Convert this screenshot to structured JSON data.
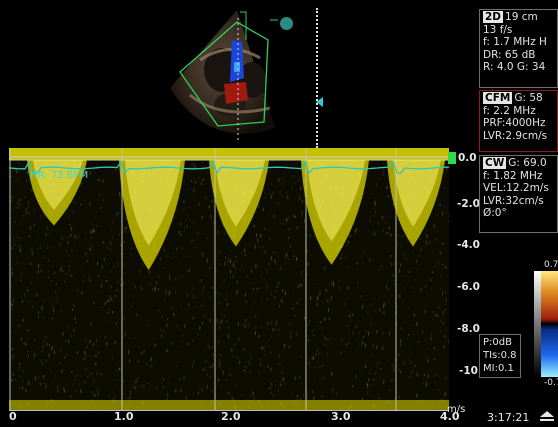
{
  "mode_2d": {
    "tag": "2D",
    "depth": "19 cm",
    "frame_rate": "13 f/s",
    "frequency": "f: 1.7 MHz H",
    "dynamic_range": "DR: 65 dB",
    "r_g": "R: 4.0  G: 34"
  },
  "cfm": {
    "tag": "CFM",
    "gain": "G: 58",
    "frequency": "f: 2.2 MHz",
    "prf": "PRF:4000Hz",
    "lvr": "LVR:2.9cm/s"
  },
  "cw": {
    "tag": "CW",
    "gain": "G: 69.0",
    "frequency": "f: 1.82 MHz",
    "velocity": "VEL:12.2m/s",
    "lvr": "LVR:32cm/s",
    "angle": "Ø:0°"
  },
  "power": {
    "p": "P:0dB",
    "tis": "TIs:0.8",
    "mi": "MI:0.1"
  },
  "heart_rate": "HR: 73 BPM",
  "velocity_scale": [
    "0.0",
    "-2.0",
    "-4.0",
    "-6.0",
    "-8.0",
    "-10"
  ],
  "velocity_unit": "m/s",
  "time_labels": [
    "0",
    "1.0",
    "2.0",
    "3.0",
    "4.0"
  ],
  "color_bar": {
    "top": "0.7",
    "bottom": "-0.7"
  },
  "clock": "3:17:21",
  "colors": {
    "doppler": "#e6e000",
    "ecg": "#2fc6c0",
    "cfm_border": "#8c1b1b",
    "info_border": "#6e6e6e"
  }
}
